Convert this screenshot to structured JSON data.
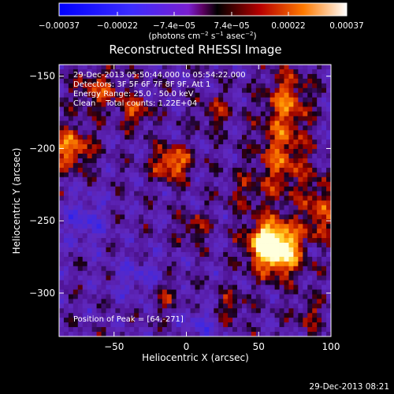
{
  "chart_data": {
    "type": "heatmap",
    "title": "Reconstructed RHESSI Image",
    "xlabel": "Heliocentric X (arcsec)",
    "ylabel": "Heliocentric Y (arcsec)",
    "xlim": [
      -88,
      100
    ],
    "ylim": [
      -330,
      -142
    ],
    "x_ticks": [
      -50,
      0,
      50,
      100
    ],
    "x_tick_labels": [
      "−50",
      "0",
      "50",
      "100"
    ],
    "y_ticks": [
      -150,
      -200,
      -250,
      -300
    ],
    "y_tick_labels": [
      "−150",
      "−200",
      "−250",
      "−300"
    ],
    "colorbar": {
      "range": [
        -0.00037,
        0.00037
      ],
      "tick_values": [
        -0.00037,
        -0.00022,
        -7.4e-05,
        7.4e-05,
        0.00022,
        0.00037
      ],
      "tick_labels": [
        "−0.00037",
        "−0.00022",
        "−7.4e−05",
        "7.4e−05",
        "0.00022",
        "0.00037"
      ],
      "unit_main": "(photons cm",
      "unit_s1": "−2",
      "unit_mid": " s",
      "unit_s2": "−1",
      "unit_end": " asec",
      "unit_s3": "−2",
      "unit_close": ")"
    },
    "annotations": {
      "time_range": "29-Dec-2013 05:50:44.000 to 05:54:22.000",
      "detectors": "Detectors: 3F 5F 6F 7F 8F 9F, Att 1",
      "energy": "Energy Range: 25.0 - 50.0 keV",
      "clean": "Clean    Total counts: 1.22E+04",
      "peak": "Position of Peak = [64,-271]"
    },
    "peak_position": [
      64,
      -271
    ],
    "sources": [
      {
        "x": 64,
        "y": -271,
        "amp": 1.0,
        "sx": 12,
        "sy": 12
      },
      {
        "x": 56,
        "y": -264,
        "amp": 0.7,
        "sx": 10,
        "sy": 10
      },
      {
        "x": 66,
        "y": -205,
        "amp": 0.55,
        "sx": 12,
        "sy": 22
      },
      {
        "x": 70,
        "y": -165,
        "amp": 0.5,
        "sx": 10,
        "sy": 14
      },
      {
        "x": 92,
        "y": -245,
        "amp": 0.5,
        "sx": 8,
        "sy": 18
      },
      {
        "x": -10,
        "y": -210,
        "amp": 0.75,
        "sx": 9,
        "sy": 8
      },
      {
        "x": -80,
        "y": -200,
        "amp": 0.7,
        "sx": 10,
        "sy": 10
      },
      {
        "x": -60,
        "y": -160,
        "amp": 0.45,
        "sx": 12,
        "sy": 10
      },
      {
        "x": -35,
        "y": -175,
        "amp": 0.5,
        "sx": 7,
        "sy": 7
      },
      {
        "x": 20,
        "y": -175,
        "amp": 0.35,
        "sx": 8,
        "sy": 8
      },
      {
        "x": 30,
        "y": -310,
        "amp": 0.35,
        "sx": 8,
        "sy": 8
      },
      {
        "x": -15,
        "y": -300,
        "amp": 0.35,
        "sx": 8,
        "sy": 10
      },
      {
        "x": 5,
        "y": -255,
        "amp": 0.4,
        "sx": 7,
        "sy": 7
      },
      {
        "x": 85,
        "y": -315,
        "amp": 0.3,
        "sx": 8,
        "sy": 8
      },
      {
        "x": 40,
        "y": -230,
        "amp": 0.25,
        "sx": 10,
        "sy": 10
      },
      {
        "x": -70,
        "y": -250,
        "amp": -0.35,
        "sx": 10,
        "sy": 12
      },
      {
        "x": -30,
        "y": -290,
        "amp": -0.3,
        "sx": 15,
        "sy": 10
      },
      {
        "x": 90,
        "y": -270,
        "amp": -0.3,
        "sx": 6,
        "sy": 6
      },
      {
        "x": 10,
        "y": -320,
        "amp": -0.3,
        "sx": 10,
        "sy": 8
      }
    ]
  },
  "footer": {
    "timestamp": "29-Dec-2013 08:21"
  }
}
